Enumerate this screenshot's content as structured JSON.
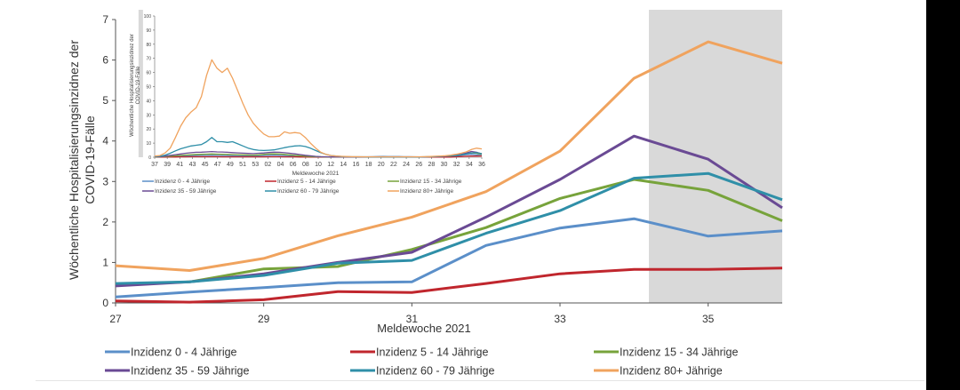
{
  "chart_data": [
    {
      "type": "line",
      "ylabel": "Wöchentliche Hospitalisierungsinzidnez der COVID-19-Fälle",
      "xlabel": "Meldewoche 2021",
      "xlim": [
        27,
        36
      ],
      "ylim": [
        0,
        7
      ],
      "xticks": [
        "27",
        "29",
        "31",
        "33",
        "35"
      ],
      "yticks": [
        "0",
        "1",
        "2",
        "3",
        "4",
        "5",
        "6",
        "7"
      ],
      "shaded_region": [
        34.2,
        36
      ],
      "grid": false,
      "legend_position": "bottom",
      "x": [
        27,
        28,
        29,
        30,
        31,
        32,
        33,
        34,
        35,
        36
      ],
      "series": [
        {
          "name": "Inzidenz 0 - 4 Jährige",
          "color": "#5b8fc9",
          "values": [
            0.15,
            0.27,
            0.38,
            0.5,
            0.52,
            1.42,
            1.85,
            2.08,
            1.65,
            1.78
          ]
        },
        {
          "name": "Inzidenz 5 - 14 Jährige",
          "color": "#c0262d",
          "values": [
            0.05,
            0.02,
            0.08,
            0.28,
            0.26,
            0.48,
            0.72,
            0.83,
            0.83,
            0.86
          ]
        },
        {
          "name": "Inzidenz 15 - 34 Jährige",
          "color": "#77a33b",
          "values": [
            0.45,
            0.52,
            0.84,
            0.9,
            1.32,
            1.86,
            2.58,
            3.05,
            2.78,
            2.03
          ]
        },
        {
          "name": "Inzidenz 35 - 59 Jährige",
          "color": "#6a4a94",
          "values": [
            0.42,
            0.52,
            0.72,
            1.0,
            1.25,
            2.12,
            3.05,
            4.12,
            3.55,
            2.35
          ]
        },
        {
          "name": "Inzidenz 60 - 79 Jährige",
          "color": "#2f8fa8",
          "values": [
            0.48,
            0.52,
            0.68,
            0.98,
            1.05,
            1.72,
            2.28,
            3.08,
            3.2,
            2.55
          ]
        },
        {
          "name": "Inzidenz 80+ Jährige",
          "color": "#f0a35e",
          "values": [
            0.92,
            0.8,
            1.1,
            1.66,
            2.12,
            2.75,
            3.75,
            5.55,
            6.45,
            5.92
          ]
        }
      ]
    },
    {
      "type": "line",
      "inset": true,
      "ylabel": "Wöchentliche Hospitalisierungsinzidnez der COVID-19-Fälle",
      "xlabel": "Meldewoche 2021",
      "ylim": [
        0,
        100
      ],
      "yticks": [
        "0",
        "10",
        "20",
        "30",
        "40",
        "50",
        "60",
        "70",
        "80",
        "90",
        "100"
      ],
      "xticks": [
        "37",
        "39",
        "41",
        "43",
        "45",
        "47",
        "49",
        "51",
        "53",
        "02",
        "04",
        "06",
        "08",
        "10",
        "12",
        "14",
        "16",
        "18",
        "20",
        "22",
        "24",
        "26",
        "28",
        "30",
        "32",
        "34",
        "36"
      ],
      "shaded_region": [
        "33",
        "35"
      ],
      "series": [
        {
          "name": "Inzidenz 0 - 4 Jährige",
          "color": "#5b8fc9",
          "values": [
            0.3,
            0.3,
            0.4,
            0.5,
            0.6,
            0.8,
            1,
            1.1,
            1.2,
            1.3,
            1.3,
            1.4,
            1.3,
            1.2,
            1.2,
            1.1,
            1,
            1,
            0.9,
            0.8,
            1,
            1.2,
            1.4,
            1.5,
            1.4,
            1.2,
            1,
            0.8,
            0.6,
            0.4,
            0.3,
            0.2,
            0.2,
            0.1,
            0.1,
            0.1,
            0.1,
            0.1,
            0.1,
            0.2,
            0.2,
            0.3,
            0.4,
            0.5,
            0.6,
            0.5,
            0.5,
            0.5,
            0.4,
            0.35,
            0.3,
            0.25,
            0.2,
            0.2,
            0.15,
            0.15,
            0.2,
            0.3,
            0.5,
            1.4,
            1.8,
            2.1,
            1.7,
            1.8
          ]
        },
        {
          "name": "Inzidenz 5 - 14 Jährige",
          "color": "#c0262d",
          "values": [
            0.1,
            0.1,
            0.1,
            0.2,
            0.2,
            0.3,
            0.3,
            0.4,
            0.4,
            0.4,
            0.4,
            0.4,
            0.4,
            0.3,
            0.3,
            0.3,
            0.3,
            0.3,
            0.3,
            0.3,
            0.3,
            0.3,
            0.4,
            0.4,
            0.4,
            0.3,
            0.3,
            0.3,
            0.2,
            0.2,
            0.1,
            0.1,
            0.1,
            0.1,
            0.1,
            0.1,
            0.1,
            0.1,
            0.1,
            0.1,
            0.1,
            0.1,
            0.1,
            0.1,
            0.1,
            0.1,
            0.1,
            0.1,
            0.1,
            0.1,
            0.1,
            0.1,
            0.1,
            0.1,
            0.1,
            0.1,
            0.1,
            0.1,
            0.3,
            0.5,
            0.7,
            0.8,
            0.8,
            0.9
          ]
        },
        {
          "name": "Inzidenz 15 - 34 Jährige",
          "color": "#77a33b",
          "values": [
            0.2,
            0.3,
            0.5,
            0.8,
            1,
            1.3,
            1.6,
            1.8,
            2,
            2.1,
            2.2,
            2.3,
            2.2,
            2.1,
            2,
            1.9,
            1.8,
            1.7,
            1.6,
            1.5,
            1.7,
            2,
            2.3,
            2.4,
            2.3,
            2,
            1.7,
            1.3,
            1,
            0.7,
            0.5,
            0.3,
            0.3,
            0.2,
            0.2,
            0.2,
            0.2,
            0.2,
            0.2,
            0.2,
            0.2,
            0.2,
            0.2,
            0.2,
            0.2,
            0.2,
            0.2,
            0.2,
            0.2,
            0.2,
            0.2,
            0.2,
            0.2,
            0.3,
            0.4,
            0.5,
            0.8,
            0.9,
            1.3,
            1.9,
            2.6,
            3.1,
            2.8,
            2
          ]
        },
        {
          "name": "Inzidenz 35 - 59 Jährige",
          "color": "#6a4a94",
          "values": [
            0.3,
            0.4,
            0.8,
            1.3,
            1.8,
            2.3,
            2.8,
            3.2,
            3.5,
            3.6,
            3.8,
            4,
            3.8,
            3.7,
            3.5,
            3.3,
            3.1,
            2.9,
            2.7,
            2.6,
            2.8,
            3,
            3.4,
            3.6,
            3.5,
            3.2,
            2.8,
            2.4,
            1.9,
            1.4,
            1,
            0.6,
            0.4,
            0.3,
            0.2,
            0.2,
            0.2,
            0.2,
            0.2,
            0.2,
            0.2,
            0.2,
            0.2,
            0.2,
            0.2,
            0.2,
            0.2,
            0.2,
            0.2,
            0.2,
            0.2,
            0.2,
            0.2,
            0.3,
            0.4,
            0.5,
            0.7,
            1,
            1.3,
            2.1,
            3,
            4.1,
            3.5,
            2.4
          ]
        },
        {
          "name": "Inzidenz 60 - 79 Jährige",
          "color": "#2f8fa8",
          "values": [
            0.5,
            0.7,
            1.5,
            2.8,
            4.5,
            6,
            7,
            8,
            8.5,
            9,
            11,
            14,
            11,
            11,
            10.5,
            11,
            9.5,
            8,
            6.5,
            5.5,
            5,
            4.8,
            5,
            5.2,
            6,
            6.8,
            7.5,
            8,
            8.2,
            7.6,
            6.4,
            4.8,
            3.2,
            2,
            1.2,
            0.8,
            0.5,
            0.4,
            0.3,
            0.3,
            0.3,
            0.2,
            0.2,
            0.2,
            0.2,
            0.2,
            0.2,
            0.2,
            0.2,
            0.2,
            0.2,
            0.2,
            0.3,
            0.4,
            0.5,
            0.7,
            0.9,
            1,
            1.1,
            1.7,
            2.3,
            3.1,
            3.2,
            2.6
          ]
        },
        {
          "name": "Inzidenz 80+ Jährige",
          "color": "#f0a35e",
          "values": [
            0.8,
            1.2,
            3,
            6.5,
            14,
            22,
            28,
            32,
            35,
            43,
            58,
            69,
            63,
            60,
            63,
            56,
            47,
            38,
            30,
            24,
            20,
            16.5,
            14.5,
            14.5,
            15,
            18,
            17,
            17.5,
            17,
            14,
            10,
            6.5,
            3.5,
            2,
            1.2,
            0.8,
            0.6,
            0.5,
            0.4,
            0.4,
            0.3,
            0.3,
            0.3,
            0.3,
            0.3,
            0.3,
            0.3,
            0.3,
            0.3,
            0.3,
            0.3,
            0.3,
            0.4,
            0.5,
            0.7,
            0.9,
            1.1,
            1.5,
            2.1,
            2.8,
            3.8,
            5.5,
            6.4,
            5.9
          ]
        }
      ]
    }
  ]
}
